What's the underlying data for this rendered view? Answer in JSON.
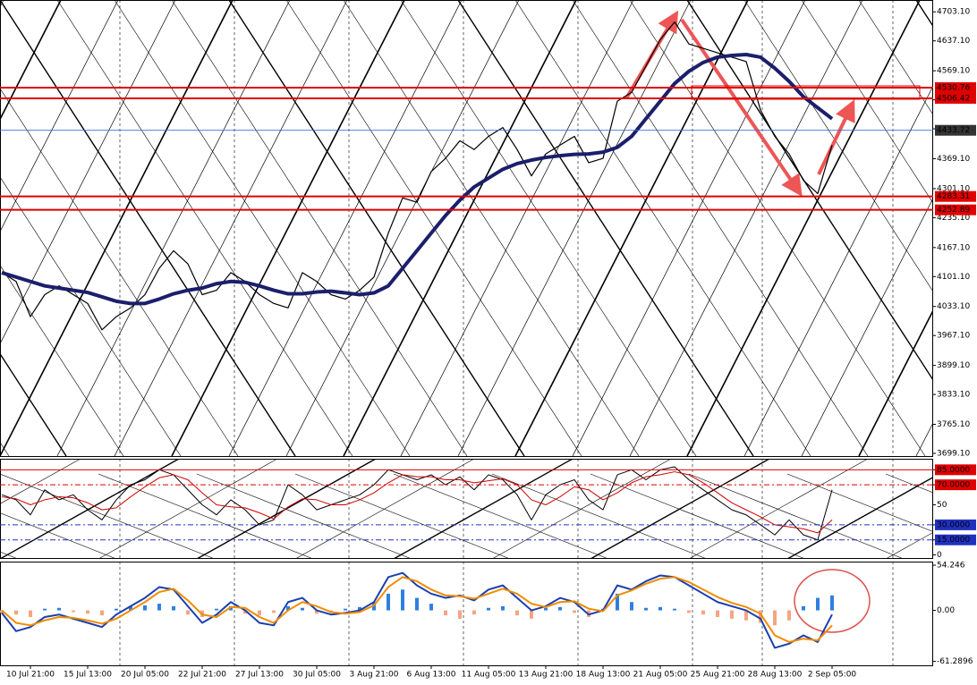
{
  "chart_data": [
    {
      "type": "line",
      "panel": "price",
      "ylim": [
        3693,
        4730
      ],
      "yticks": [
        {
          "value": 4703.1,
          "label": "4703.10"
        },
        {
          "value": 4637.1,
          "label": "4637.10"
        },
        {
          "value": 4569.1,
          "label": "4569.10"
        },
        {
          "value": 4503.1,
          "label": "4503.10"
        },
        {
          "value": 4437.1,
          "label": "4437.10"
        },
        {
          "value": 4369.1,
          "label": "4369.10"
        },
        {
          "value": 4301.1,
          "label": "4301.10"
        },
        {
          "value": 4235.1,
          "label": "4235.10"
        },
        {
          "value": 4167.1,
          "label": "4167.10"
        },
        {
          "value": 4101.1,
          "label": "4101.10"
        },
        {
          "value": 4033.1,
          "label": "4033.10"
        },
        {
          "value": 3967.1,
          "label": "3967.10"
        },
        {
          "value": 3899.1,
          "label": "3899.10"
        },
        {
          "value": 3833.1,
          "label": "3833.10"
        },
        {
          "value": 3765.1,
          "label": "3765.10"
        },
        {
          "value": 3699.1,
          "label": "3699.10"
        }
      ],
      "levels": [
        4530.76,
        4506.42,
        4433.72,
        4283.31,
        4252.89
      ],
      "level_colors": [
        "#e00000",
        "#e00000",
        "#3a6fd0",
        "#e00000",
        "#e00000"
      ],
      "series": [
        {
          "name": "Price",
          "color": "#000000",
          "values": [
            4110,
            4090,
            4010,
            4060,
            4080,
            4060,
            4040,
            3980,
            4010,
            4030,
            4060,
            4120,
            4160,
            4130,
            4060,
            4070,
            4110,
            4090,
            4060,
            4040,
            4030,
            4110,
            4090,
            4060,
            4050,
            4070,
            4100,
            4200,
            4280,
            4270,
            4340,
            4370,
            4410,
            4390,
            4420,
            4440,
            4390,
            4330,
            4380,
            4400,
            4420,
            4360,
            4370,
            4500,
            4520,
            4580,
            4640,
            4680,
            4630,
            4620,
            4610,
            4600,
            4590,
            4480,
            4420,
            4380,
            4320,
            4290,
            4400
          ]
        },
        {
          "name": "MA",
          "color": "#1b1f6b",
          "values": [
            4110,
            4100,
            4090,
            4080,
            4075,
            4070,
            4065,
            4055,
            4045,
            4040,
            4040,
            4050,
            4062,
            4070,
            4075,
            4085,
            4090,
            4088,
            4080,
            4070,
            4062,
            4062,
            4066,
            4068,
            4064,
            4060,
            4064,
            4080,
            4120,
            4160,
            4200,
            4240,
            4275,
            4305,
            4325,
            4345,
            4358,
            4366,
            4372,
            4376,
            4379,
            4380,
            4384,
            4395,
            4420,
            4460,
            4500,
            4540,
            4568,
            4588,
            4600,
            4604,
            4606,
            4600,
            4575,
            4545,
            4510,
            4485,
            4460
          ]
        }
      ]
    },
    {
      "type": "line",
      "panel": "stochastic",
      "ylim": [
        -4,
        96
      ],
      "yticks": [
        {
          "value": 85,
          "label": "85.0000"
        },
        {
          "value": 70,
          "label": "70.0000"
        },
        50,
        {
          "value": 30,
          "label": "30.0000"
        },
        {
          "value": 15,
          "label": "15.0000"
        },
        0
      ],
      "levels": [
        85,
        70,
        30,
        15
      ],
      "level_colors": [
        "#e00000",
        "#e00000",
        "#2030c0",
        "#2030c0"
      ],
      "series": [
        {
          "name": "K",
          "color": "#000000",
          "values": [
            60,
            55,
            40,
            65,
            55,
            60,
            45,
            35,
            55,
            70,
            75,
            85,
            80,
            65,
            50,
            40,
            55,
            45,
            30,
            35,
            70,
            60,
            45,
            50,
            55,
            60,
            70,
            85,
            80,
            75,
            80,
            70,
            78,
            65,
            80,
            75,
            60,
            35,
            60,
            70,
            75,
            55,
            45,
            80,
            85,
            75,
            85,
            88,
            75,
            65,
            55,
            45,
            40,
            30,
            20,
            35,
            20,
            15,
            65
          ]
        },
        {
          "name": "D",
          "color": "#d00000",
          "values": [
            58,
            56,
            50,
            55,
            58,
            57,
            52,
            45,
            47,
            58,
            68,
            77,
            80,
            75,
            62,
            50,
            48,
            47,
            42,
            36,
            48,
            56,
            55,
            50,
            50,
            55,
            62,
            72,
            80,
            78,
            78,
            75,
            75,
            72,
            74,
            76,
            70,
            55,
            50,
            58,
            68,
            65,
            55,
            62,
            72,
            78,
            80,
            83,
            80,
            72,
            62,
            52,
            45,
            38,
            30,
            28,
            26,
            22,
            35
          ]
        }
      ]
    },
    {
      "type": "bar",
      "panel": "macd",
      "ylim": [
        -66,
        58.6
      ],
      "yticks": [
        {
          "value": 54.246,
          "label": "54.246"
        },
        {
          "value": 0,
          "label": "0.00"
        },
        {
          "value": -61.2896,
          "label": "-61.2896"
        }
      ],
      "categories": [
        null,
        null,
        "10 Jul 21:00",
        null,
        null,
        null,
        "15 Jul 13:00",
        null,
        null,
        null,
        "20 Jul 05:00",
        null,
        null,
        null,
        "22 Jul 21:00",
        null,
        null,
        null,
        "27 Jul 13:00",
        null,
        null,
        null,
        "30 Jul 05:00",
        null,
        null,
        null,
        "3 Aug 21:00",
        null,
        null,
        null,
        "6 Aug 13:00",
        null,
        null,
        null,
        "11 Aug 05:00",
        null,
        null,
        null,
        "13 Aug 21:00",
        null,
        null,
        null,
        "18 Aug 13:00",
        null,
        null,
        null,
        "21 Aug 05:00",
        null,
        null,
        null,
        "25 Aug 21:00",
        null,
        null,
        null,
        "28 Aug 13:00",
        null,
        null,
        null,
        "2 Sep 05:00"
      ],
      "up_color": "#2f7fe0",
      "down_color": "#f4a582",
      "values": [
        -3,
        -5,
        -8,
        2,
        3,
        -2,
        -4,
        -6,
        2,
        5,
        6,
        8,
        5,
        -5,
        -8,
        2,
        5,
        -4,
        -6,
        -3,
        5,
        3,
        -4,
        -3,
        2,
        4,
        10,
        20,
        25,
        15,
        8,
        -6,
        -10,
        -5,
        3,
        5,
        -6,
        -10,
        3,
        4,
        -3,
        -8,
        2,
        20,
        10,
        3,
        4,
        2,
        -3,
        -5,
        -8,
        -10,
        -12,
        -15,
        -18,
        -12,
        5,
        15,
        18
      ],
      "series": [
        {
          "name": "MACD",
          "color": "#1a3fb0",
          "values": [
            -3,
            -25,
            -20,
            -8,
            -5,
            -10,
            -15,
            -20,
            -5,
            5,
            15,
            28,
            25,
            5,
            -15,
            -5,
            10,
            0,
            -15,
            -18,
            10,
            15,
            0,
            -5,
            -3,
            0,
            10,
            40,
            45,
            30,
            20,
            15,
            18,
            12,
            25,
            30,
            15,
            0,
            5,
            15,
            10,
            -5,
            0,
            30,
            25,
            35,
            42,
            40,
            30,
            20,
            10,
            5,
            0,
            -10,
            -45,
            -40,
            -30,
            -38,
            -5
          ]
        },
        {
          "name": "Signal",
          "color": "#f08c00",
          "values": [
            0,
            -15,
            -18,
            -12,
            -8,
            -9,
            -12,
            -16,
            -10,
            0,
            10,
            22,
            26,
            12,
            -5,
            -8,
            4,
            3,
            -8,
            -15,
            0,
            10,
            5,
            -2,
            -4,
            -2,
            6,
            28,
            40,
            35,
            25,
            18,
            17,
            14,
            20,
            26,
            20,
            8,
            4,
            10,
            11,
            2,
            -1,
            18,
            24,
            32,
            38,
            40,
            34,
            25,
            16,
            9,
            4,
            -4,
            -30,
            -38,
            -34,
            -36,
            -18
          ]
        }
      ]
    }
  ]
}
